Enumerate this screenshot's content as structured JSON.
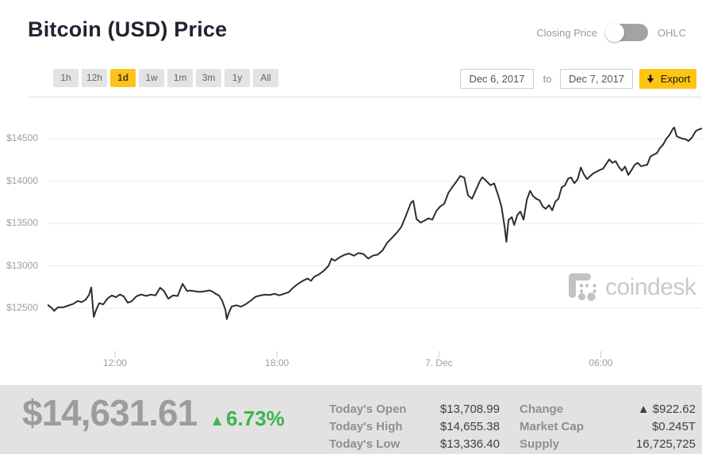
{
  "header": {
    "title": "Bitcoin (USD) Price",
    "price_type_toggle": {
      "left_label": "Closing Price",
      "right_label": "OHLC",
      "state": "left"
    }
  },
  "controls": {
    "ranges": [
      "1h",
      "12h",
      "1d",
      "1w",
      "1m",
      "3m",
      "1y",
      "All"
    ],
    "selected_range": "1d",
    "date_from": "Dec 6, 2017",
    "to_label": "to",
    "date_to": "Dec 7, 2017",
    "export_label": "Export"
  },
  "chart_data": {
    "type": "line",
    "title": "Bitcoin (USD) closing price, Dec 6, 2017 to Dec 7, 2017",
    "x_ticks": [
      "12:00",
      "18:00",
      "7. Dec",
      "06:00"
    ],
    "x_tick_hours": [
      2.5,
      8.5,
      14.5,
      20.5
    ],
    "x_range_hours": [
      0,
      24.25
    ],
    "x_start": "Dec 6, ~09:30",
    "y_tick_labels": [
      "$14500",
      "$14000",
      "$13500",
      "$13000",
      "$12500"
    ],
    "y_tick_values": [
      14500,
      14000,
      13500,
      13000,
      12500
    ],
    "ylim": [
      11900,
      14780
    ],
    "grid": true,
    "legend": false,
    "line_color": "#2d2d2d",
    "points": [
      [
        0,
        12540
      ],
      [
        0.15,
        12505
      ],
      [
        0.24,
        12468
      ],
      [
        0.38,
        12510
      ],
      [
        0.59,
        12512
      ],
      [
        0.74,
        12528
      ],
      [
        0.94,
        12550
      ],
      [
        1.12,
        12585
      ],
      [
        1.26,
        12572
      ],
      [
        1.41,
        12600
      ],
      [
        1.53,
        12655
      ],
      [
        1.62,
        12745
      ],
      [
        1.68,
        12500
      ],
      [
        1.71,
        12398
      ],
      [
        1.79,
        12472
      ],
      [
        1.91,
        12560
      ],
      [
        2.06,
        12545
      ],
      [
        2.23,
        12618
      ],
      [
        2.38,
        12650
      ],
      [
        2.53,
        12630
      ],
      [
        2.68,
        12662
      ],
      [
        2.82,
        12640
      ],
      [
        2.97,
        12565
      ],
      [
        3.12,
        12582
      ],
      [
        3.29,
        12640
      ],
      [
        3.47,
        12662
      ],
      [
        3.65,
        12645
      ],
      [
        3.82,
        12660
      ],
      [
        4.0,
        12652
      ],
      [
        4.17,
        12742
      ],
      [
        4.32,
        12700
      ],
      [
        4.47,
        12612
      ],
      [
        4.64,
        12650
      ],
      [
        4.82,
        12645
      ],
      [
        5.0,
        12788
      ],
      [
        5.17,
        12702
      ],
      [
        5.29,
        12708
      ],
      [
        5.47,
        12700
      ],
      [
        5.64,
        12692
      ],
      [
        5.82,
        12700
      ],
      [
        6.0,
        12710
      ],
      [
        6.11,
        12695
      ],
      [
        6.23,
        12670
      ],
      [
        6.35,
        12650
      ],
      [
        6.47,
        12590
      ],
      [
        6.59,
        12480
      ],
      [
        6.64,
        12372
      ],
      [
        6.7,
        12432
      ],
      [
        6.82,
        12520
      ],
      [
        7.0,
        12535
      ],
      [
        7.17,
        12518
      ],
      [
        7.35,
        12550
      ],
      [
        7.53,
        12590
      ],
      [
        7.7,
        12635
      ],
      [
        7.88,
        12650
      ],
      [
        8.06,
        12660
      ],
      [
        8.23,
        12655
      ],
      [
        8.41,
        12670
      ],
      [
        8.59,
        12652
      ],
      [
        8.76,
        12670
      ],
      [
        8.94,
        12690
      ],
      [
        9.11,
        12745
      ],
      [
        9.29,
        12790
      ],
      [
        9.47,
        12825
      ],
      [
        9.64,
        12850
      ],
      [
        9.76,
        12822
      ],
      [
        9.88,
        12870
      ],
      [
        10.06,
        12900
      ],
      [
        10.23,
        12940
      ],
      [
        10.41,
        13000
      ],
      [
        10.52,
        13085
      ],
      [
        10.64,
        13060
      ],
      [
        10.82,
        13100
      ],
      [
        11.0,
        13130
      ],
      [
        11.17,
        13145
      ],
      [
        11.35,
        13120
      ],
      [
        11.52,
        13150
      ],
      [
        11.7,
        13140
      ],
      [
        11.88,
        13085
      ],
      [
        12.05,
        13120
      ],
      [
        12.23,
        13132
      ],
      [
        12.41,
        13180
      ],
      [
        12.58,
        13270
      ],
      [
        12.76,
        13330
      ],
      [
        12.94,
        13390
      ],
      [
        13.11,
        13460
      ],
      [
        13.29,
        13600
      ],
      [
        13.46,
        13740
      ],
      [
        13.55,
        13768
      ],
      [
        13.67,
        13552
      ],
      [
        13.82,
        13510
      ],
      [
        13.96,
        13532
      ],
      [
        14.11,
        13560
      ],
      [
        14.26,
        13545
      ],
      [
        14.41,
        13650
      ],
      [
        14.55,
        13700
      ],
      [
        14.7,
        13732
      ],
      [
        14.85,
        13860
      ],
      [
        15.0,
        13930
      ],
      [
        15.14,
        13990
      ],
      [
        15.29,
        14060
      ],
      [
        15.44,
        14040
      ],
      [
        15.58,
        13832
      ],
      [
        15.73,
        13792
      ],
      [
        15.88,
        13900
      ],
      [
        16.02,
        14000
      ],
      [
        16.11,
        14045
      ],
      [
        16.26,
        14000
      ],
      [
        16.41,
        13950
      ],
      [
        16.55,
        13972
      ],
      [
        16.7,
        13830
      ],
      [
        16.82,
        13700
      ],
      [
        16.94,
        13450
      ],
      [
        17.0,
        13282
      ],
      [
        17.08,
        13540
      ],
      [
        17.2,
        13575
      ],
      [
        17.29,
        13482
      ],
      [
        17.41,
        13600
      ],
      [
        17.52,
        13640
      ],
      [
        17.64,
        13545
      ],
      [
        17.76,
        13780
      ],
      [
        17.88,
        13885
      ],
      [
        17.99,
        13822
      ],
      [
        18.11,
        13792
      ],
      [
        18.23,
        13772
      ],
      [
        18.35,
        13700
      ],
      [
        18.46,
        13672
      ],
      [
        18.58,
        13715
      ],
      [
        18.7,
        13655
      ],
      [
        18.82,
        13760
      ],
      [
        18.93,
        13790
      ],
      [
        19.05,
        13925
      ],
      [
        19.17,
        13950
      ],
      [
        19.29,
        14030
      ],
      [
        19.4,
        14042
      ],
      [
        19.52,
        13975
      ],
      [
        19.64,
        14020
      ],
      [
        19.76,
        14160
      ],
      [
        19.87,
        14080
      ],
      [
        19.99,
        14022
      ],
      [
        20.11,
        14060
      ],
      [
        20.22,
        14090
      ],
      [
        20.34,
        14110
      ],
      [
        20.46,
        14130
      ],
      [
        20.58,
        14145
      ],
      [
        20.7,
        14200
      ],
      [
        20.81,
        14255
      ],
      [
        20.93,
        14215
      ],
      [
        21.05,
        14235
      ],
      [
        21.17,
        14165
      ],
      [
        21.28,
        14122
      ],
      [
        21.4,
        14170
      ],
      [
        21.52,
        14072
      ],
      [
        21.64,
        14130
      ],
      [
        21.75,
        14190
      ],
      [
        21.87,
        14215
      ],
      [
        21.99,
        14175
      ],
      [
        22.11,
        14185
      ],
      [
        22.22,
        14192
      ],
      [
        22.34,
        14290
      ],
      [
        22.46,
        14310
      ],
      [
        22.58,
        14330
      ],
      [
        22.69,
        14390
      ],
      [
        22.81,
        14430
      ],
      [
        22.93,
        14500
      ],
      [
        23.05,
        14545
      ],
      [
        23.16,
        14610
      ],
      [
        23.22,
        14632
      ],
      [
        23.31,
        14530
      ],
      [
        23.4,
        14515
      ],
      [
        23.52,
        14500
      ],
      [
        23.63,
        14495
      ],
      [
        23.75,
        14472
      ],
      [
        23.87,
        14510
      ],
      [
        24.02,
        14590
      ],
      [
        24.13,
        14608
      ],
      [
        24.25,
        14620
      ]
    ]
  },
  "watermark": {
    "brand": "coindesk"
  },
  "stats_bar": {
    "current_price": "$14,631.61",
    "change_arrow": "▲",
    "change_pct": "6.73%",
    "left_stats": [
      {
        "label": "Today's Open",
        "value": "$13,708.99"
      },
      {
        "label": "Today's High",
        "value": "$14,655.38"
      },
      {
        "label": "Today's Low",
        "value": "$13,336.40"
      }
    ],
    "right_stats": [
      {
        "label": "Change",
        "arrow": "▲",
        "value": "$922.62"
      },
      {
        "label": "Market Cap",
        "value": "$0.245T"
      },
      {
        "label": "Supply",
        "value": "16,725,725"
      }
    ]
  },
  "colors": {
    "accent_yellow": "#fcc31d",
    "export_yellow": "#fdc513",
    "positive_green": "#3bb54a",
    "line": "#2d2d2d",
    "bottom_bar_bg": "#e2e2e2",
    "title_text": "#1f2430",
    "muted_text": "#9a9a9a"
  }
}
